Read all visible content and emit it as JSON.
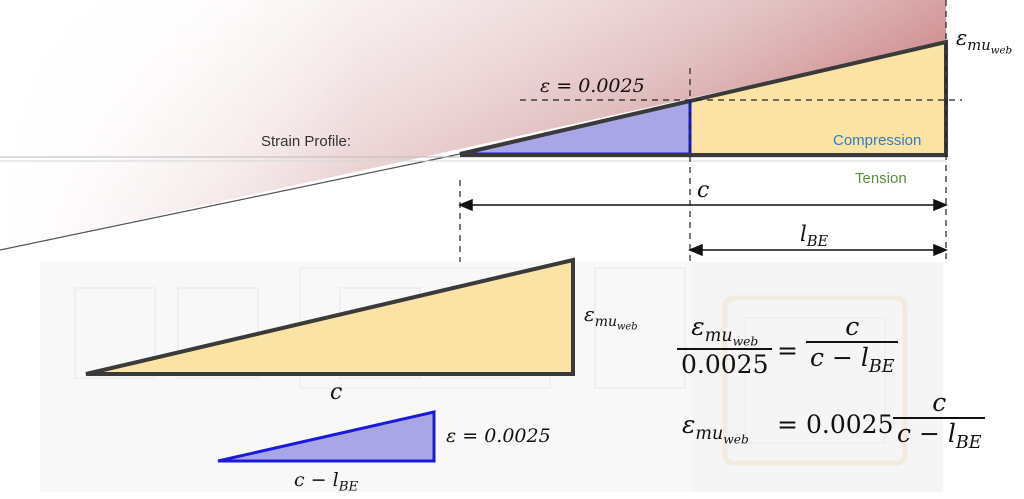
{
  "top": {
    "strain_profile_label": "Strain Profile:",
    "strain_at_depth": "ε = 0.0025",
    "compression_label": "Compression",
    "tension_label": "Tension",
    "c_label": "c",
    "lbe_label": "l",
    "lbe_sub": "BE",
    "eps_top_main": "ε",
    "eps_top_sub": "mu",
    "eps_top_subsub": "web"
  },
  "lower": {
    "big_triangle_base": "c",
    "big_triangle_side_main": "ε",
    "big_triangle_side_sub": "mu",
    "big_triangle_side_subsub": "web",
    "small_triangle_base_pre": "c − l",
    "small_triangle_base_sub": "BE",
    "small_triangle_side": "ε = 0.0025"
  },
  "equations": {
    "eq1_num_main": "ε",
    "eq1_num_sub": "mu",
    "eq1_num_subsub": "web",
    "eq1_den": "0.0025",
    "eq1_equals": "=",
    "eq1_rhs_num": "c",
    "eq1_rhs_den_pre": "c − l",
    "eq1_rhs_den_sub": "BE",
    "eq2_lhs_main": "ε",
    "eq2_lhs_sub": "mu",
    "eq2_lhs_subsub": "web",
    "eq2_equals": "=",
    "eq2_coef": "0.0025",
    "eq2_rhs_num": "c",
    "eq2_rhs_den_pre": "c − l",
    "eq2_rhs_den_sub": "BE"
  },
  "colors": {
    "compression_text": "#2f7fc1",
    "tension_text": "#5a8f3a",
    "yellow_fill": "#fbe3a6",
    "blue_fill": "#a9a6e8",
    "blue_stroke": "#1a1ad8",
    "dark_stroke": "#333333",
    "red_glow": "#b5474a"
  }
}
